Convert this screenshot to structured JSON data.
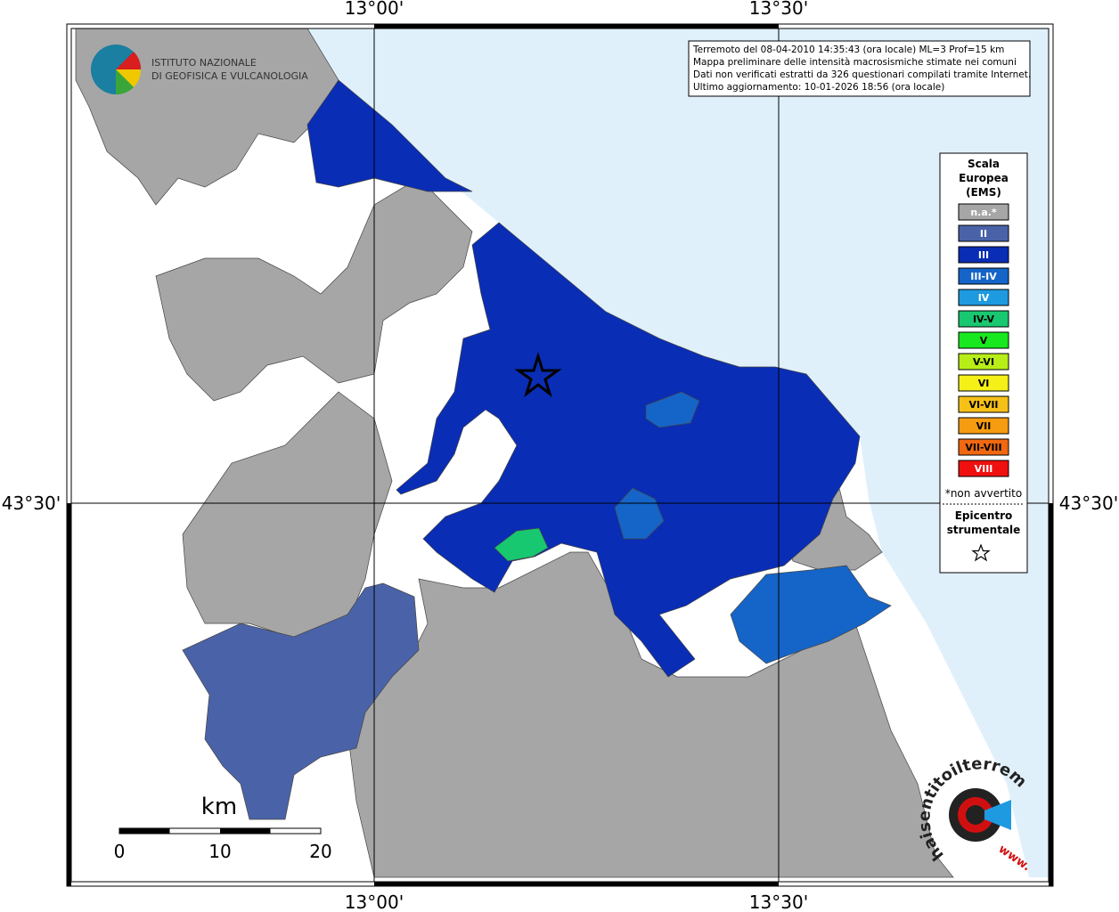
{
  "axes": {
    "top": [
      "13°00'",
      "13°30'"
    ],
    "bottom": [
      "13°00'",
      "13°30'"
    ],
    "left": "43°30'",
    "right": "43°30'"
  },
  "institute": {
    "line1": "ISTITUTO NAZIONALE",
    "line2": "DI GEOFISICA E VULCANOLOGIA"
  },
  "info": [
    "Terremoto del 08-04-2010 14:35:43 (ora locale) ML=3 Prof=15 km",
    "Mappa preliminare delle intensità macrosismiche stimate nei comuni",
    "Dati non verificati estratti da 326 questionari compilati tramite Internet.",
    "Ultimo aggiornamento: 10-01-2026 18:56 (ora locale)"
  ],
  "legend": {
    "title": [
      "Scala",
      "Europea",
      "(EMS)"
    ],
    "items": [
      {
        "label": "n.a.*",
        "color": "#a6a6a6",
        "text": "#ffffff"
      },
      {
        "label": "II",
        "color": "#4a63a8",
        "text": "#ffffff"
      },
      {
        "label": "III",
        "color": "#0a2db5",
        "text": "#ffffff"
      },
      {
        "label": "III-IV",
        "color": "#1565c8",
        "text": "#ffffff"
      },
      {
        "label": "IV",
        "color": "#1e9ae0",
        "text": "#ffffff"
      },
      {
        "label": "IV-V",
        "color": "#18c870",
        "text": "#000000"
      },
      {
        "label": "V",
        "color": "#18e820",
        "text": "#000000"
      },
      {
        "label": "V-VI",
        "color": "#b8ee18",
        "text": "#000000"
      },
      {
        "label": "VI",
        "color": "#f5f018",
        "text": "#000000"
      },
      {
        "label": "VI-VII",
        "color": "#f5c018",
        "text": "#000000"
      },
      {
        "label": "VII",
        "color": "#f59c10",
        "text": "#000000"
      },
      {
        "label": "VII-VIII",
        "color": "#f06810",
        "text": "#000000"
      },
      {
        "label": "VIII",
        "color": "#f01010",
        "text": "#ffffff"
      }
    ],
    "note": "*non avvertito",
    "epicenter": [
      "Epicentro",
      "strumentale"
    ]
  },
  "scale": {
    "unit": "km",
    "labels": [
      "0",
      "10",
      "20"
    ]
  },
  "logo": {
    "site": "haisentitoilterremoto.it",
    "www": "www."
  }
}
